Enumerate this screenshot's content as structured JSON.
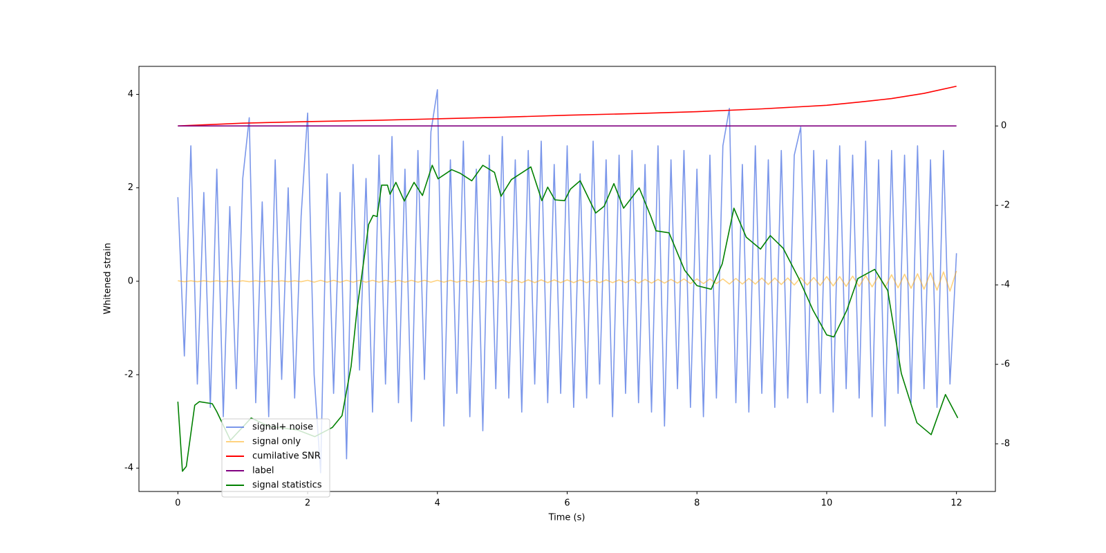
{
  "chart_data": {
    "type": "line",
    "xlabel": "Time (s)",
    "ylabel": "Whitened strain",
    "xlim": [
      -0.6,
      12.6
    ],
    "xticks": [
      0,
      2,
      4,
      6,
      8,
      10,
      12
    ],
    "ylim": [
      -4.5,
      4.6
    ],
    "yticks": [
      -4,
      -2,
      0,
      2,
      4
    ],
    "y2lim": [
      -9.2,
      1.5
    ],
    "y2ticks": [
      -8,
      -6,
      -4,
      -2,
      0
    ],
    "legend": "lower left",
    "series": [
      {
        "name": "signal+ noise",
        "color": "#4169e1",
        "opacity": 0.7,
        "x": [
          0,
          0.1,
          0.2,
          0.3,
          0.4,
          0.5,
          0.6,
          0.7,
          0.8,
          0.9,
          1,
          1.1,
          1.2,
          1.3,
          1.4,
          1.5,
          1.6,
          1.7,
          1.8,
          1.9,
          2,
          2.1,
          2.2,
          2.3,
          2.4,
          2.5,
          2.6,
          2.7,
          2.8,
          2.9,
          3,
          3.1,
          3.2,
          3.3,
          3.4,
          3.5,
          3.6,
          3.7,
          3.8,
          3.9,
          4,
          4.1,
          4.2,
          4.3,
          4.4,
          4.5,
          4.6,
          4.7,
          4.8,
          4.9,
          5,
          5.1,
          5.2,
          5.3,
          5.4,
          5.5,
          5.6,
          5.7,
          5.8,
          5.9,
          6,
          6.1,
          6.2,
          6.3,
          6.4,
          6.5,
          6.6,
          6.7,
          6.8,
          6.9,
          7,
          7.1,
          7.2,
          7.3,
          7.4,
          7.5,
          7.6,
          7.7,
          7.8,
          7.9,
          8,
          8.1,
          8.2,
          8.3,
          8.4,
          8.5,
          8.6,
          8.7,
          8.8,
          8.9,
          9,
          9.1,
          9.2,
          9.3,
          9.4,
          9.5,
          9.6,
          9.7,
          9.8,
          9.9,
          10,
          10.1,
          10.2,
          10.3,
          10.4,
          10.5,
          10.6,
          10.7,
          10.8,
          10.9,
          11,
          11.1,
          11.2,
          11.3,
          11.4,
          11.5,
          11.6,
          11.7,
          11.8,
          11.9,
          12
        ],
        "values": [
          1.8,
          -1.6,
          2.9,
          -2.2,
          1.9,
          -2.7,
          2.4,
          -2.9,
          1.6,
          -2.3,
          2.2,
          3.5,
          -2.6,
          1.7,
          -2.9,
          2.6,
          -2.1,
          2.0,
          -2.5,
          1.4,
          3.6,
          -2.0,
          -4.1,
          2.3,
          -2.4,
          1.9,
          -3.8,
          2.5,
          -1.9,
          2.2,
          -2.8,
          2.7,
          -2.2,
          3.1,
          -2.6,
          2.4,
          -3.0,
          2.8,
          -2.1,
          3.2,
          4.1,
          -3.1,
          2.6,
          -2.4,
          3.0,
          -2.9,
          2.4,
          -3.2,
          2.7,
          -2.3,
          3.1,
          -2.5,
          2.6,
          -2.8,
          2.8,
          -2.2,
          3.0,
          -2.6,
          2.5,
          -2.4,
          2.9,
          -2.7,
          2.3,
          -2.5,
          3.0,
          -2.2,
          2.6,
          -2.9,
          2.7,
          -2.4,
          2.8,
          -2.6,
          2.5,
          -2.8,
          2.9,
          -3.1,
          2.6,
          -2.3,
          2.8,
          -2.7,
          2.4,
          -2.9,
          2.7,
          -2.5,
          2.9,
          3.7,
          -2.6,
          2.5,
          -2.8,
          2.9,
          -2.4,
          2.6,
          -2.7,
          2.8,
          -2.5,
          2.7,
          3.3,
          -2.6,
          2.8,
          -2.4,
          2.6,
          -2.8,
          2.9,
          -2.3,
          2.7,
          -2.5,
          3.0,
          -2.9,
          2.6,
          -3.1,
          2.8,
          -2.4,
          2.7,
          -2.6,
          2.9,
          -2.3,
          2.6,
          -2.7,
          2.8,
          -2.2,
          0.6
        ]
      },
      {
        "name": "signal only",
        "color": "orange",
        "opacity": 0.5,
        "x": [
          0,
          0.1,
          0.2,
          0.3,
          0.4,
          0.5,
          0.6,
          0.7,
          0.8,
          0.9,
          1,
          1.1,
          1.2,
          1.3,
          1.4,
          1.5,
          1.6,
          1.7,
          1.8,
          1.9,
          2,
          2.1,
          2.2,
          2.3,
          2.4,
          2.5,
          2.6,
          2.7,
          2.8,
          2.9,
          3,
          3.1,
          3.2,
          3.3,
          3.4,
          3.5,
          3.6,
          3.7,
          3.8,
          3.9,
          4,
          4.1,
          4.2,
          4.3,
          4.4,
          4.5,
          4.6,
          4.7,
          4.8,
          4.9,
          5,
          5.1,
          5.2,
          5.3,
          5.4,
          5.5,
          5.6,
          5.7,
          5.8,
          5.9,
          6,
          6.1,
          6.2,
          6.3,
          6.4,
          6.5,
          6.6,
          6.7,
          6.8,
          6.9,
          7,
          7.1,
          7.2,
          7.3,
          7.4,
          7.5,
          7.6,
          7.7,
          7.8,
          7.9,
          8,
          8.1,
          8.2,
          8.3,
          8.4,
          8.5,
          8.6,
          8.7,
          8.8,
          8.9,
          9,
          9.1,
          9.2,
          9.3,
          9.4,
          9.5,
          9.6,
          9.7,
          9.8,
          9.9,
          10,
          10.1,
          10.2,
          10.3,
          10.4,
          10.5,
          10.6,
          10.7,
          10.8,
          10.9,
          11,
          11.1,
          11.2,
          11.3,
          11.4,
          11.5,
          11.6,
          11.7,
          11.8,
          11.9,
          12
        ],
        "values": [
          0.01,
          -0.01,
          0.01,
          -0.01,
          0.01,
          -0.01,
          0.01,
          -0.01,
          0.01,
          -0.01,
          0.01,
          -0.01,
          0.01,
          -0.01,
          0.01,
          -0.01,
          0.01,
          -0.01,
          0.01,
          -0.01,
          0.02,
          -0.02,
          0.02,
          -0.02,
          0.02,
          -0.02,
          0.02,
          -0.02,
          0.02,
          -0.02,
          0.02,
          -0.02,
          0.02,
          -0.02,
          0.02,
          -0.02,
          0.02,
          -0.02,
          0.02,
          -0.02,
          0.02,
          -0.02,
          0.02,
          -0.02,
          0.02,
          -0.02,
          0.02,
          -0.02,
          0.02,
          -0.02,
          0.03,
          -0.03,
          0.03,
          -0.03,
          0.03,
          -0.03,
          0.03,
          -0.03,
          0.03,
          -0.03,
          0.03,
          -0.03,
          0.03,
          -0.03,
          0.03,
          -0.03,
          0.03,
          -0.03,
          0.03,
          -0.03,
          0.04,
          -0.04,
          0.04,
          -0.04,
          0.04,
          -0.04,
          0.04,
          -0.04,
          0.05,
          -0.05,
          0.05,
          -0.05,
          0.05,
          -0.05,
          0.05,
          -0.06,
          0.06,
          -0.06,
          0.06,
          -0.06,
          0.07,
          -0.07,
          0.07,
          -0.07,
          0.07,
          -0.08,
          0.08,
          -0.08,
          0.08,
          -0.09,
          0.1,
          -0.1,
          0.1,
          -0.11,
          0.11,
          -0.11,
          0.12,
          -0.12,
          0.12,
          -0.13,
          0.14,
          -0.14,
          0.15,
          -0.15,
          0.16,
          -0.17,
          0.18,
          -0.19,
          0.2,
          -0.21,
          0.22
        ]
      },
      {
        "name": "cumilative SNR",
        "color": "red",
        "axis": "y2",
        "x": [
          0,
          1,
          2,
          3,
          4,
          5,
          6,
          7,
          8,
          9,
          10,
          10.5,
          11,
          11.5,
          12
        ],
        "values": [
          0,
          0.07,
          0.11,
          0.14,
          0.18,
          0.22,
          0.27,
          0.31,
          0.36,
          0.43,
          0.52,
          0.6,
          0.69,
          0.82,
          1.0
        ]
      },
      {
        "name": "label",
        "color": "purple",
        "axis": "y2",
        "x": [
          0,
          12
        ],
        "values": [
          0,
          0
        ]
      },
      {
        "name": "signal statistics",
        "color": "green",
        "axis": "y2",
        "x": [
          0,
          0.07,
          0.13,
          0.26,
          0.33,
          0.53,
          0.6,
          0.81,
          1.13,
          1.4,
          1.84,
          2.11,
          2.38,
          2.53,
          2.67,
          2.76,
          2.88,
          2.94,
          3.01,
          3.07,
          3.14,
          3.23,
          3.27,
          3.36,
          3.49,
          3.64,
          3.77,
          3.92,
          4.01,
          4.22,
          4.35,
          4.53,
          4.7,
          4.88,
          4.98,
          5.14,
          5.31,
          5.44,
          5.61,
          5.7,
          5.81,
          5.96,
          6.05,
          6.2,
          6.44,
          6.57,
          6.72,
          6.87,
          7.11,
          7.29,
          7.37,
          7.57,
          7.81,
          8.0,
          8.22,
          8.39,
          8.57,
          8.76,
          8.98,
          9.13,
          9.33,
          9.57,
          9.79,
          10.0,
          10.11,
          10.31,
          10.48,
          10.74,
          10.94,
          11.15,
          11.39,
          11.61,
          11.83,
          12.02
        ],
        "values": [
          -6.94,
          -8.69,
          -8.57,
          -7.03,
          -6.94,
          -6.99,
          -7.19,
          -7.91,
          -7.35,
          -7.56,
          -7.65,
          -7.82,
          -7.59,
          -7.29,
          -6.05,
          -4.64,
          -3.22,
          -2.48,
          -2.25,
          -2.28,
          -1.49,
          -1.49,
          -1.72,
          -1.42,
          -1.89,
          -1.42,
          -1.75,
          -0.99,
          -1.33,
          -1.1,
          -1.19,
          -1.38,
          -0.99,
          -1.17,
          -1.77,
          -1.35,
          -1.17,
          -1.03,
          -1.88,
          -1.54,
          -1.86,
          -1.88,
          -1.59,
          -1.38,
          -2.19,
          -2.02,
          -1.45,
          -2.07,
          -1.56,
          -2.28,
          -2.64,
          -2.69,
          -3.63,
          -4.02,
          -4.11,
          -3.47,
          -2.07,
          -2.8,
          -3.1,
          -2.76,
          -3.08,
          -3.84,
          -4.64,
          -5.26,
          -5.31,
          -4.64,
          -3.84,
          -3.61,
          -4.14,
          -6.23,
          -7.47,
          -7.77,
          -6.76,
          -7.35
        ]
      }
    ]
  }
}
